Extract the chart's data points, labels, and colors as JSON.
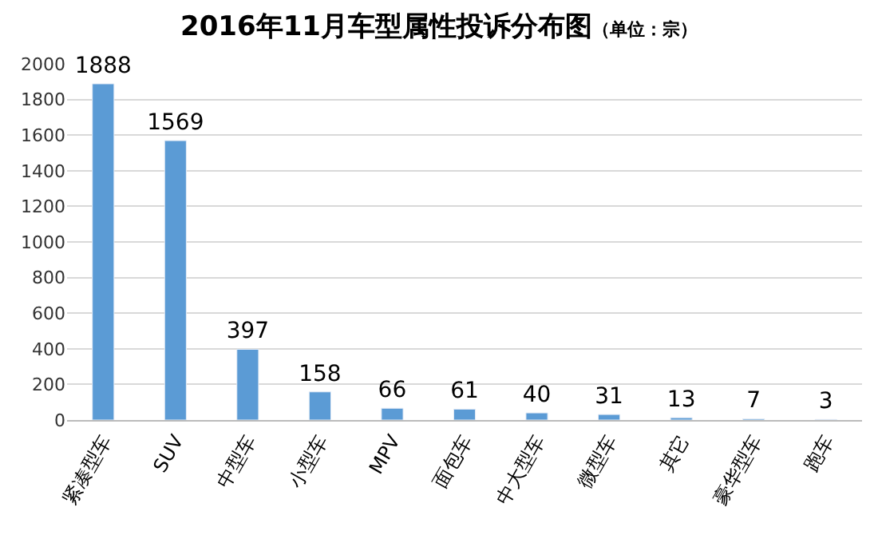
{
  "chart_data": {
    "type": "bar",
    "title": "2016年11月车型属性投诉分布图",
    "subtitle": "（单位：宗）",
    "categories": [
      "紧凑型车",
      "SUV",
      "中型车",
      "小型车",
      "MPV",
      "面包车",
      "中大型车",
      "微型车",
      "其它",
      "豪华型车",
      "跑车"
    ],
    "values": [
      1888,
      1569,
      397,
      158,
      66,
      61,
      40,
      31,
      13,
      7,
      3
    ],
    "color": "#5b9bd5",
    "ylim": [
      0,
      2000
    ],
    "yticks": [
      0,
      200,
      400,
      600,
      800,
      1000,
      1200,
      1400,
      1600,
      1800,
      2000
    ],
    "grid": "y",
    "data_labels": true,
    "legend": false
  }
}
